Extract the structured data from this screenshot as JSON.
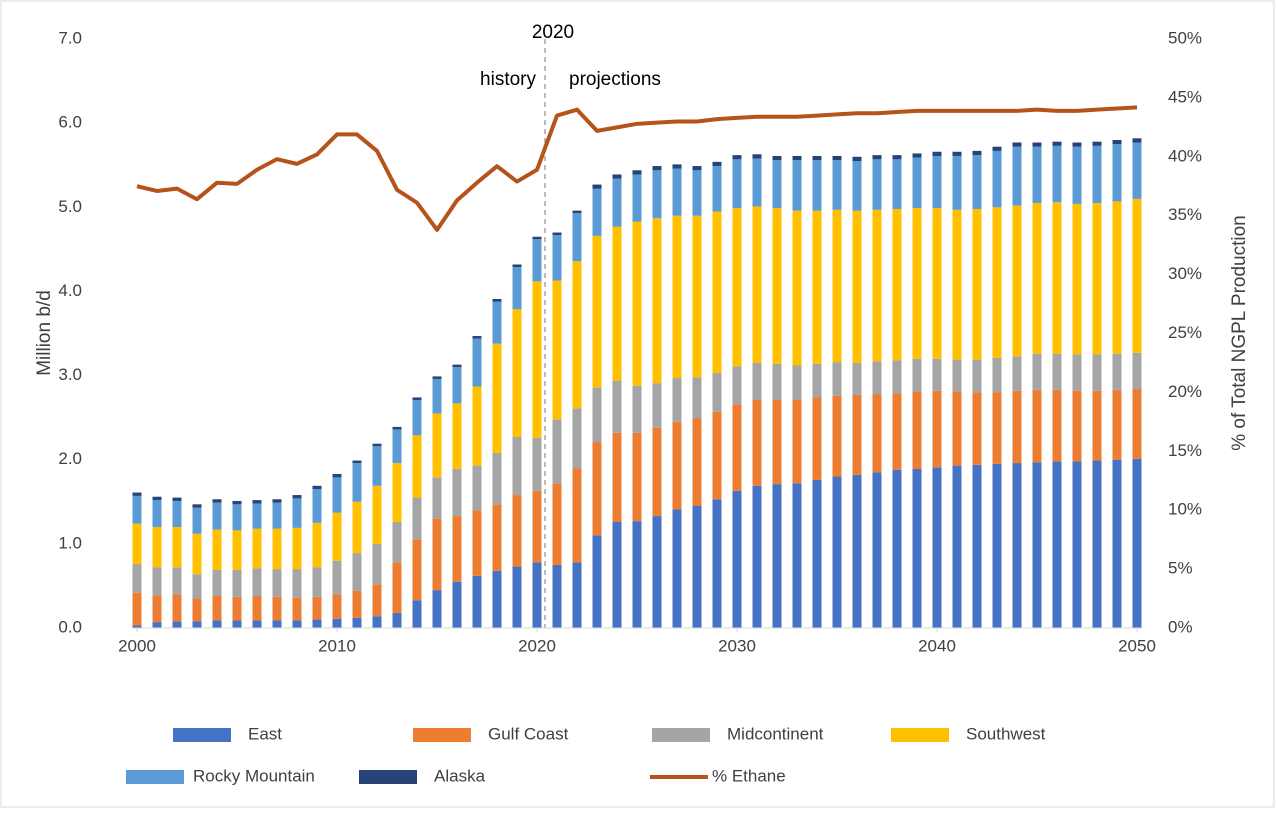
{
  "chart_data": {
    "type": "stacked_bar_line",
    "y_label": "Million b/d",
    "y2_label": "% of Total NGPL Production",
    "annotations": [
      "2020",
      "history",
      "projections"
    ],
    "x": [
      2000,
      2001,
      2002,
      2003,
      2004,
      2005,
      2006,
      2007,
      2008,
      2009,
      2010,
      2011,
      2012,
      2013,
      2014,
      2015,
      2016,
      2017,
      2018,
      2019,
      2020,
      2021,
      2022,
      2023,
      2024,
      2025,
      2026,
      2027,
      2028,
      2029,
      2030,
      2031,
      2032,
      2033,
      2034,
      2035,
      2036,
      2037,
      2038,
      2039,
      2040,
      2041,
      2042,
      2043,
      2044,
      2045,
      2046,
      2047,
      2048,
      2049,
      2050
    ],
    "xlim": [
      2000,
      2050
    ],
    "xticks": [
      2000,
      2010,
      2020,
      2030,
      2040,
      2050
    ],
    "ylim": [
      0,
      7
    ],
    "yticks": [
      {
        "value": 0,
        "label": "0.0"
      },
      {
        "value": 1,
        "label": "1.0"
      },
      {
        "value": 2,
        "label": "2.0"
      },
      {
        "value": 3,
        "label": "3.0"
      },
      {
        "value": 4,
        "label": "4.0"
      },
      {
        "value": 5,
        "label": "5.0"
      },
      {
        "value": 6,
        "label": "6.0"
      },
      {
        "value": 7,
        "label": "7.0"
      }
    ],
    "y2lim": [
      0,
      50
    ],
    "y2ticks": [
      {
        "value": 0,
        "label": "0%"
      },
      {
        "value": 5,
        "label": "5%"
      },
      {
        "value": 10,
        "label": "10%"
      },
      {
        "value": 15,
        "label": "15%"
      },
      {
        "value": 20,
        "label": "20%"
      },
      {
        "value": 25,
        "label": "25%"
      },
      {
        "value": 30,
        "label": "30%"
      },
      {
        "value": 35,
        "label": "35%"
      },
      {
        "value": 40,
        "label": "40%"
      },
      {
        "value": 45,
        "label": "45%"
      },
      {
        "value": 50,
        "label": "50%"
      }
    ],
    "grid": false,
    "series": [
      {
        "name": "East",
        "color": "#4472c4",
        "kind": "bar",
        "values": [
          0.03,
          0.07,
          0.08,
          0.08,
          0.09,
          0.09,
          0.09,
          0.09,
          0.09,
          0.1,
          0.11,
          0.12,
          0.14,
          0.18,
          0.33,
          0.45,
          0.55,
          0.62,
          0.68,
          0.73,
          0.78,
          0.75,
          0.78,
          1.1,
          1.26,
          1.27,
          1.33,
          1.41,
          1.45,
          1.53,
          1.63,
          1.69,
          1.71,
          1.72,
          1.76,
          1.8,
          1.82,
          1.85,
          1.88,
          1.89,
          1.91,
          1.93,
          1.94,
          1.95,
          1.96,
          1.97,
          1.98,
          1.98,
          1.99,
          2.0,
          2.01
        ]
      },
      {
        "name": "Gulf Coast",
        "color": "#ed7d31",
        "kind": "bar",
        "values": [
          0.39,
          0.32,
          0.32,
          0.27,
          0.29,
          0.28,
          0.29,
          0.28,
          0.27,
          0.27,
          0.29,
          0.32,
          0.38,
          0.6,
          0.72,
          0.85,
          0.78,
          0.78,
          0.79,
          0.85,
          0.85,
          0.97,
          1.12,
          1.11,
          1.06,
          1.05,
          1.05,
          1.04,
          1.04,
          1.04,
          1.03,
          1.02,
          1.0,
          0.99,
          0.98,
          0.96,
          0.95,
          0.93,
          0.91,
          0.92,
          0.91,
          0.88,
          0.86,
          0.85,
          0.86,
          0.86,
          0.85,
          0.84,
          0.83,
          0.83,
          0.83
        ]
      },
      {
        "name": "Midcontinent",
        "color": "#a5a5a5",
        "kind": "bar",
        "values": [
          0.34,
          0.33,
          0.32,
          0.29,
          0.31,
          0.32,
          0.33,
          0.33,
          0.34,
          0.35,
          0.4,
          0.45,
          0.48,
          0.48,
          0.5,
          0.49,
          0.56,
          0.53,
          0.61,
          0.69,
          0.63,
          0.76,
          0.71,
          0.65,
          0.62,
          0.56,
          0.53,
          0.52,
          0.49,
          0.46,
          0.45,
          0.44,
          0.43,
          0.41,
          0.4,
          0.4,
          0.38,
          0.39,
          0.39,
          0.39,
          0.38,
          0.38,
          0.39,
          0.41,
          0.41,
          0.43,
          0.43,
          0.43,
          0.43,
          0.43,
          0.43
        ]
      },
      {
        "name": "Southwest",
        "color": "#ffc000",
        "kind": "bar",
        "values": [
          0.48,
          0.48,
          0.48,
          0.48,
          0.48,
          0.47,
          0.47,
          0.48,
          0.49,
          0.53,
          0.57,
          0.61,
          0.69,
          0.7,
          0.74,
          0.76,
          0.78,
          0.94,
          1.3,
          1.52,
          1.86,
          1.65,
          1.75,
          1.8,
          1.83,
          1.95,
          1.96,
          1.93,
          1.92,
          1.92,
          1.88,
          1.86,
          1.85,
          1.84,
          1.82,
          1.81,
          1.81,
          1.8,
          1.8,
          1.79,
          1.79,
          1.78,
          1.79,
          1.79,
          1.79,
          1.79,
          1.8,
          1.79,
          1.8,
          1.81,
          1.83
        ]
      },
      {
        "name": "Rocky Mountain",
        "color": "#5b9bd5",
        "kind": "bar",
        "values": [
          0.33,
          0.32,
          0.31,
          0.31,
          0.32,
          0.31,
          0.3,
          0.31,
          0.35,
          0.4,
          0.42,
          0.46,
          0.47,
          0.4,
          0.42,
          0.41,
          0.43,
          0.57,
          0.5,
          0.5,
          0.5,
          0.54,
          0.57,
          0.56,
          0.57,
          0.56,
          0.57,
          0.56,
          0.54,
          0.54,
          0.58,
          0.57,
          0.57,
          0.6,
          0.6,
          0.59,
          0.59,
          0.6,
          0.59,
          0.6,
          0.62,
          0.64,
          0.64,
          0.67,
          0.7,
          0.67,
          0.67,
          0.68,
          0.68,
          0.68,
          0.67
        ]
      },
      {
        "name": "Alaska",
        "color": "#264478",
        "kind": "bar",
        "values": [
          0.04,
          0.04,
          0.04,
          0.04,
          0.04,
          0.04,
          0.04,
          0.04,
          0.04,
          0.04,
          0.04,
          0.03,
          0.03,
          0.03,
          0.03,
          0.03,
          0.03,
          0.03,
          0.03,
          0.03,
          0.03,
          0.03,
          0.03,
          0.05,
          0.05,
          0.05,
          0.05,
          0.05,
          0.05,
          0.05,
          0.05,
          0.05,
          0.05,
          0.05,
          0.05,
          0.05,
          0.05,
          0.05,
          0.05,
          0.05,
          0.05,
          0.05,
          0.05,
          0.05,
          0.05,
          0.05,
          0.05,
          0.05,
          0.05,
          0.05,
          0.05
        ]
      },
      {
        "name": "% Ethane",
        "color": "#b5531a",
        "kind": "line",
        "axis": "y2",
        "values": [
          37.5,
          37.1,
          37.3,
          36.4,
          37.8,
          37.7,
          38.9,
          39.8,
          39.4,
          40.2,
          41.9,
          41.9,
          40.5,
          37.2,
          36.1,
          33.8,
          36.3,
          37.8,
          39.2,
          37.9,
          38.9,
          43.5,
          44.0,
          42.2,
          42.5,
          42.8,
          42.9,
          43.0,
          43.0,
          43.2,
          43.3,
          43.4,
          43.4,
          43.4,
          43.5,
          43.6,
          43.7,
          43.7,
          43.8,
          43.9,
          43.9,
          43.9,
          43.9,
          43.9,
          43.9,
          44.0,
          43.9,
          43.9,
          44.0,
          44.1,
          44.2
        ]
      }
    ]
  }
}
